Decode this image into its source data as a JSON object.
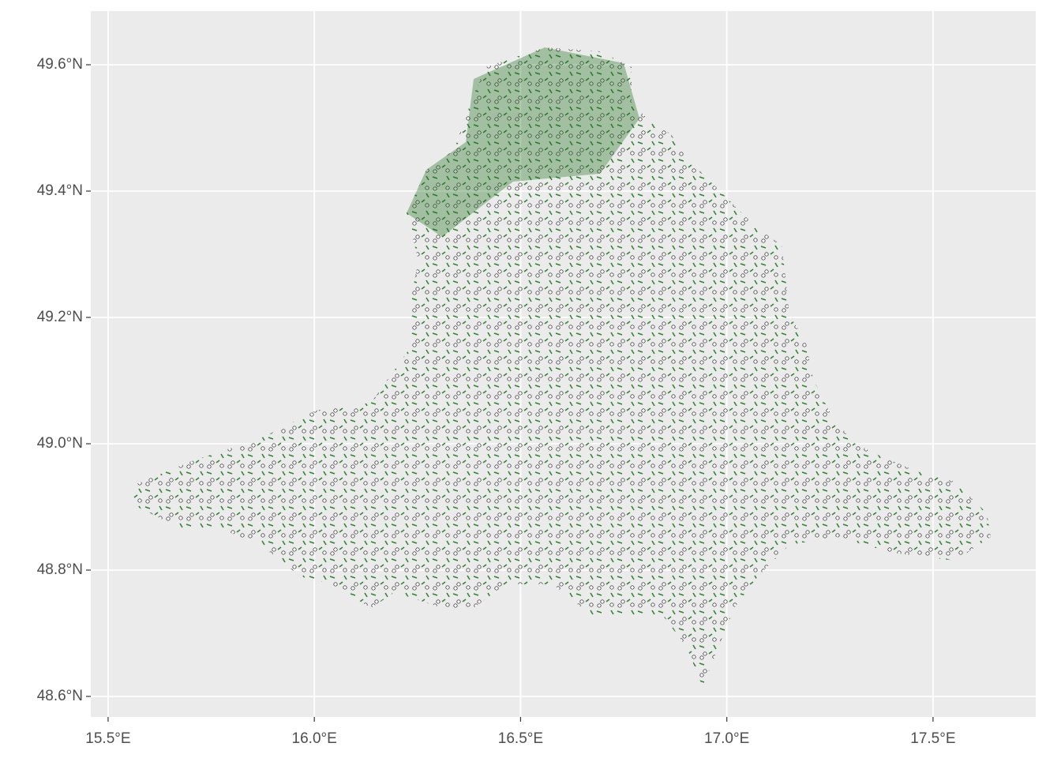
{
  "chart_data": {
    "type": "map",
    "xlim": [
      15.458,
      17.749
    ],
    "ylim": [
      48.5675,
      49.685
    ],
    "xticks": [
      {
        "value": 15.5,
        "label": "15.5°E"
      },
      {
        "value": 16.0,
        "label": "16.0°E"
      },
      {
        "value": 16.5,
        "label": "16.5°E"
      },
      {
        "value": 17.0,
        "label": "17.0°E"
      },
      {
        "value": 17.5,
        "label": "17.5°E"
      }
    ],
    "yticks": [
      {
        "value": 48.6,
        "label": "48.6°N"
      },
      {
        "value": 48.8,
        "label": "48.8°N"
      },
      {
        "value": 49.0,
        "label": "49.0°N"
      },
      {
        "value": 49.2,
        "label": "49.2°N"
      },
      {
        "value": 49.4,
        "label": "49.4°N"
      },
      {
        "value": 49.6,
        "label": "49.6°N"
      }
    ],
    "grid": true
  }
}
